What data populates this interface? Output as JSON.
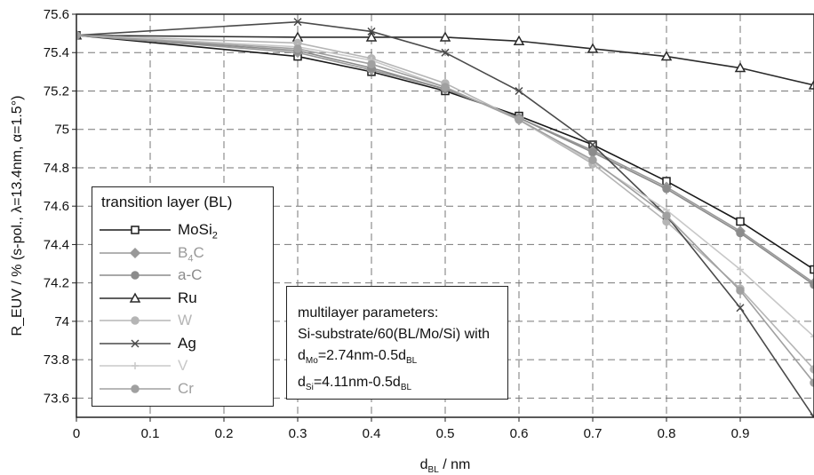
{
  "chart_data": {
    "type": "line",
    "xlabel": "d_BL / nm",
    "xlabel_main": "d",
    "xlabel_sub": "BL",
    "xlabel_unit": " / nm",
    "ylabel": "R_EUV / % (s-pol., λ=13.4nm, α=1.5°)",
    "xlim": [
      0,
      1
    ],
    "ylim": [
      73.5,
      75.6
    ],
    "xticks": [
      "0",
      "0.1",
      "0.2",
      "0.3",
      "0.4",
      "0.5",
      "0.6",
      "0.7",
      "0.8",
      "0.9"
    ],
    "yticks": [
      "75.6",
      "75.4",
      "75.2",
      "75",
      "74.8",
      "74.6",
      "74.4",
      "74.2",
      "74",
      "73.8",
      "73.6"
    ],
    "grid": true,
    "legend_title": "transition layer (BL)",
    "series": [
      {
        "name": "MoSi2",
        "label_main": "MoSi",
        "label_sub": "2",
        "color": "#1a1a1a",
        "marker": "square",
        "x": [
          0,
          0.3,
          0.4,
          0.5,
          0.6,
          0.7,
          0.8,
          0.9,
          1.0
        ],
        "y": [
          75.49,
          75.38,
          75.3,
          75.2,
          75.07,
          74.92,
          74.73,
          74.52,
          74.27
        ]
      },
      {
        "name": "B4C",
        "label_main": "B",
        "label_sub": "4",
        "label_tail": "C",
        "color": "#999999",
        "marker": "diamond",
        "x": [
          0,
          0.3,
          0.4,
          0.5,
          0.6,
          0.7,
          0.8,
          0.9,
          1.0
        ],
        "y": [
          75.49,
          75.4,
          75.31,
          75.21,
          75.06,
          74.89,
          74.7,
          74.47,
          74.2
        ]
      },
      {
        "name": "a-C",
        "color": "#8c8c8c",
        "marker": "circle",
        "x": [
          0,
          0.3,
          0.4,
          0.5,
          0.6,
          0.7,
          0.8,
          0.9,
          1.0
        ],
        "y": [
          75.49,
          75.41,
          75.32,
          75.21,
          75.06,
          74.88,
          74.69,
          74.46,
          74.19
        ]
      },
      {
        "name": "Ru",
        "color": "#2a2a2a",
        "marker": "triangle",
        "x": [
          0,
          0.3,
          0.4,
          0.5,
          0.6,
          0.7,
          0.8,
          0.9,
          1.0
        ],
        "y": [
          75.49,
          75.48,
          75.48,
          75.48,
          75.46,
          75.42,
          75.38,
          75.32,
          75.23
        ]
      },
      {
        "name": "W",
        "color": "#b5b5b5",
        "marker": "circle",
        "x": [
          0,
          0.3,
          0.4,
          0.5,
          0.6,
          0.7,
          0.8,
          0.9,
          1.0
        ],
        "y": [
          75.49,
          75.45,
          75.37,
          75.24,
          75.05,
          74.82,
          74.52,
          74.17,
          73.75
        ]
      },
      {
        "name": "Ag",
        "color": "#4a4a4a",
        "marker": "cross",
        "x": [
          0,
          0.3,
          0.4,
          0.5,
          0.6,
          0.7,
          0.8,
          0.9,
          1.0
        ],
        "y": [
          75.49,
          75.56,
          75.51,
          75.4,
          75.2,
          74.92,
          74.55,
          74.07,
          73.5
        ]
      },
      {
        "name": "V",
        "color": "#c8c8c8",
        "marker": "plus",
        "x": [
          0,
          0.3,
          0.4,
          0.5,
          0.6,
          0.7,
          0.8,
          0.9,
          1.0
        ],
        "y": [
          75.49,
          75.43,
          75.36,
          75.22,
          75.05,
          74.83,
          74.58,
          74.27,
          73.92
        ]
      },
      {
        "name": "Cr",
        "color": "#a0a0a0",
        "marker": "circle",
        "x": [
          0,
          0.3,
          0.4,
          0.5,
          0.6,
          0.7,
          0.8,
          0.9,
          1.0
        ],
        "y": [
          75.49,
          75.42,
          75.34,
          75.22,
          75.05,
          74.84,
          74.55,
          74.16,
          73.68
        ]
      }
    ]
  },
  "params": {
    "line1": "multilayer parameters:",
    "line2": "Si-substrate/60(BL/Mo/Si) with",
    "line3_main": "d",
    "line3_sub": "Mo",
    "line3_mid": "=2.74nm-0.5d",
    "line3_sub2": "BL",
    "line4_main": "d",
    "line4_sub": "Si",
    "line4_mid": "=4.11nm-0.5d",
    "line4_sub2": "BL"
  }
}
